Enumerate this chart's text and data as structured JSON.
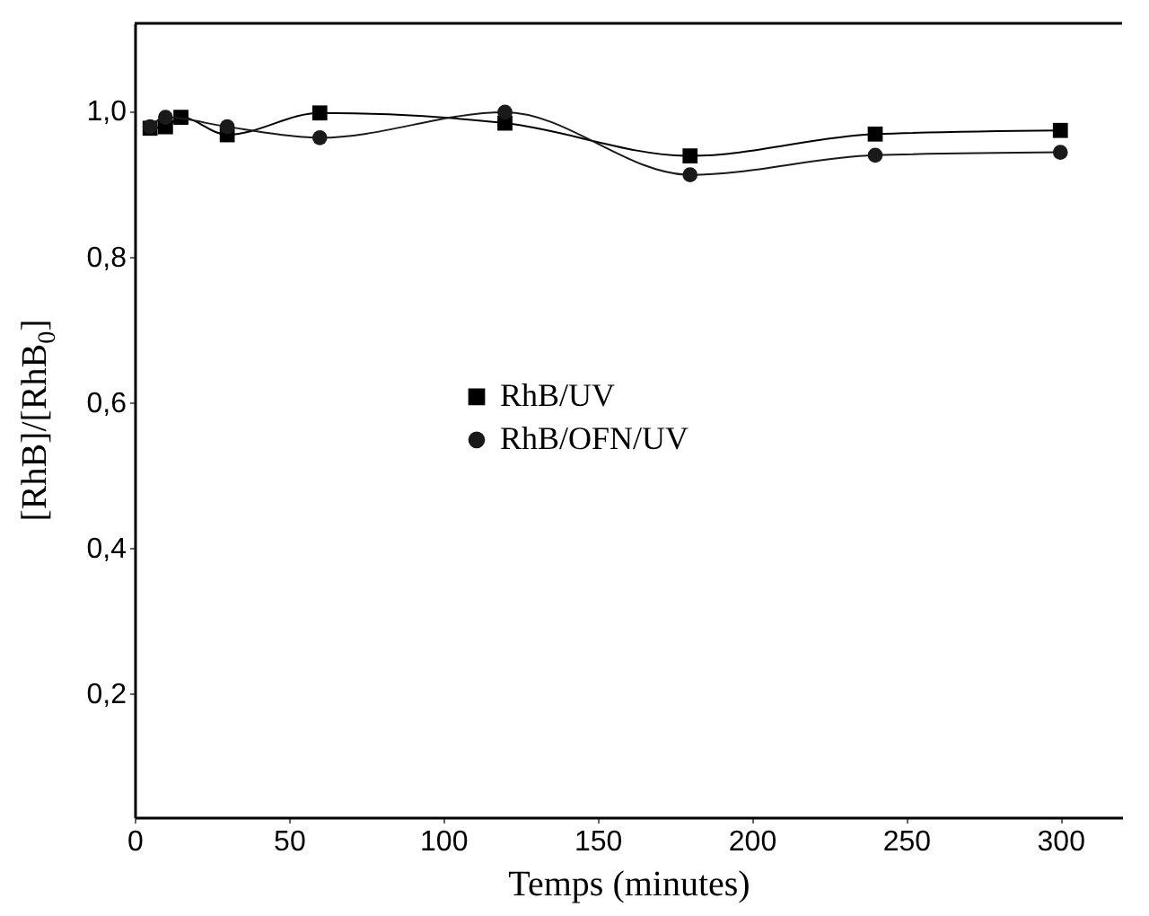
{
  "chart_data": {
    "type": "line",
    "xlabel": "Temps (minutes)",
    "ylabel": "[RhB]/[RhB$_{0}$]",
    "x": [
      5,
      10,
      15,
      30,
      60,
      120,
      180,
      240,
      300
    ],
    "series": [
      {
        "name": "RhB/UV",
        "color": "#000000",
        "marker": "square",
        "values": [
          0.976,
          0.978,
          0.991,
          0.967,
          0.997,
          0.983,
          0.938,
          0.968,
          0.973
        ]
      },
      {
        "name": "RhB/OFN/UV",
        "color": "#1a1a1a",
        "marker": "circle",
        "x": [
          5,
          10,
          30,
          60,
          120,
          180,
          240,
          300
        ],
        "values": [
          0.978,
          0.991,
          0.978,
          0.963,
          0.998,
          0.912,
          0.939,
          0.943
        ]
      }
    ],
    "xlim": [
      0,
      320
    ],
    "xticks": [
      0,
      50,
      100,
      150,
      200,
      250,
      300
    ],
    "ylim": [
      0.03,
      1.12
    ],
    "yticks": [
      {
        "value": 0.2,
        "label": "0,2"
      },
      {
        "value": 0.4,
        "label": "0,4"
      },
      {
        "value": 0.6,
        "label": "0,6"
      },
      {
        "value": 0.8,
        "label": "0,8"
      },
      {
        "value": 1.0,
        "label": "1,0"
      }
    ],
    "grid": false,
    "legend": "center",
    "line_style": "solid"
  }
}
